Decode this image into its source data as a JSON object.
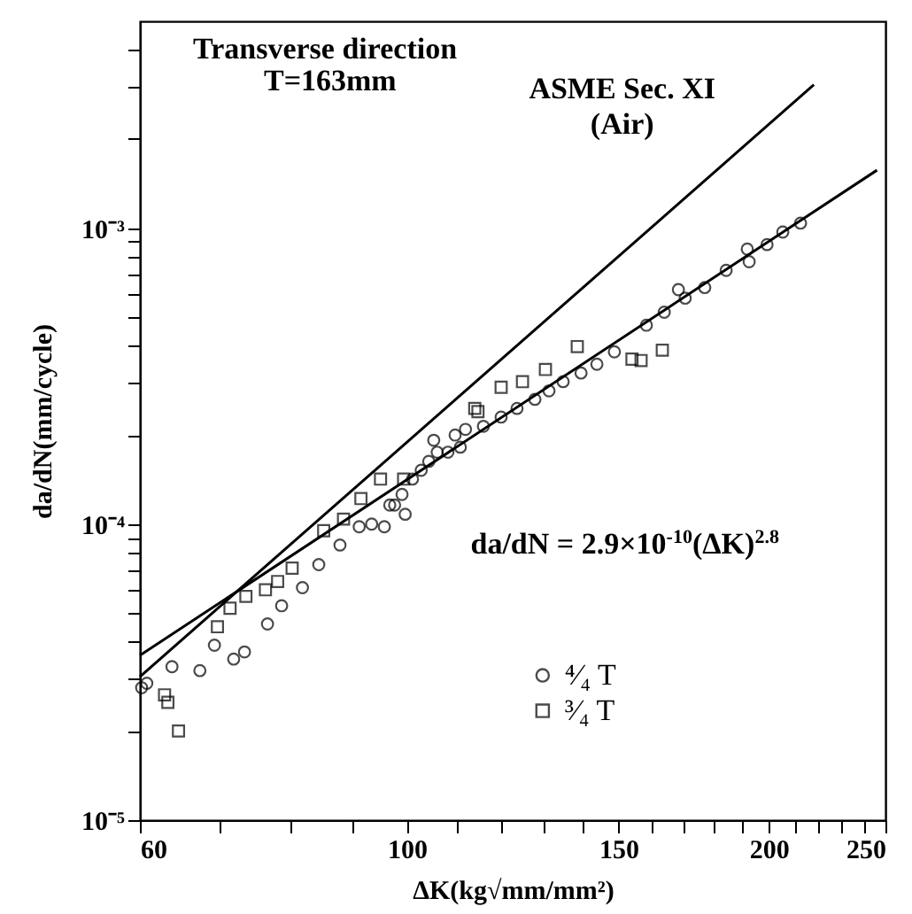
{
  "chart_data": {
    "type": "scatter",
    "xlabel": "ΔK(kg√mm/mm²)",
    "ylabel": "da/dN(mm/cycle)",
    "annotations": [
      "Transverse direction",
      "T=163mm",
      {
        "text": "ASME Sec. XI\n(Air)",
        "x": 182,
        "y": 0.00169
      },
      {
        "text": "da/dN = 2.9×10$^{-10}$(ΔK)$^{2.8}$",
        "x": 107.4,
        "y": 0.00017
      }
    ],
    "log": "xy",
    "grid": false,
    "legend": "bottom right",
    "xlim": [
      60,
      250
    ],
    "ylim": [
      1e-05,
      0.005
    ],
    "xticks": [
      60,
      {
        "value": 70,
        "label": null
      },
      {
        "value": 80,
        "label": null
      },
      {
        "value": 90,
        "label": null
      },
      100,
      {
        "value": 110,
        "label": null
      },
      {
        "value": 120,
        "label": null
      },
      {
        "value": 130,
        "label": null
      },
      {
        "value": 140,
        "label": null
      },
      150,
      {
        "value": 160,
        "label": null
      },
      {
        "value": 170,
        "label": null
      },
      {
        "value": 180,
        "label": null
      },
      {
        "value": 190,
        "label": null
      },
      200,
      {
        "value": 210,
        "label": null
      },
      {
        "value": 220,
        "label": null
      },
      {
        "value": 230,
        "label": null
      },
      {
        "value": 240,
        "label": null
      },
      250
    ],
    "yticks": [
      {
        "value": 1e-05,
        "label": "10⁻⁵"
      },
      {
        "value": 2e-05,
        "label": null
      },
      {
        "value": 3e-05,
        "label": null
      },
      {
        "value": 4e-05,
        "label": null
      },
      {
        "value": 5e-05,
        "label": null
      },
      {
        "value": 6e-05,
        "label": null
      },
      {
        "value": 7e-05,
        "label": null
      },
      {
        "value": 8e-05,
        "label": null
      },
      {
        "value": 9e-05,
        "label": null
      },
      {
        "value": 0.0001,
        "label": "10⁻⁴"
      },
      {
        "value": 0.0002,
        "label": null
      },
      {
        "value": 0.0003,
        "label": null
      },
      {
        "value": 0.0004,
        "label": null
      },
      {
        "value": 0.0005,
        "label": null
      },
      {
        "value": 0.0006,
        "label": null
      },
      {
        "value": 0.0007,
        "label": null
      },
      {
        "value": 0.0008,
        "label": null
      },
      {
        "value": 0.0009,
        "label": null
      },
      {
        "value": 0.001,
        "label": "10⁻³"
      },
      {
        "value": 0.002,
        "label": null
      },
      {
        "value": 0.003,
        "label": null
      },
      {
        "value": 0.004,
        "label": null
      }
    ],
    "series": [
      {
        "name": "⁴⁄₄ T",
        "marker": "circle",
        "color": "#000000",
        "x": [
          60.2,
          60.8,
          63.8,
          67.3,
          69.2,
          71.8,
          73.3,
          76.6,
          78.7,
          81.9,
          84.5,
          88.0,
          91.3,
          93.5,
          95.8,
          96.8,
          97.7,
          99.7,
          99.1,
          101.1,
          102.8,
          104.3,
          106.0,
          108.2,
          110.8,
          105.3,
          109.7,
          111.9,
          115.8,
          119.8,
          123.5,
          127.8,
          131.3,
          134.9,
          139.6,
          143.9,
          148.8,
          158.2,
          163.7,
          168.2,
          170.4,
          176.9,
          184.3,
          191.9,
          192.6,
          199.3,
          205.4,
          212.5
        ],
        "values": [
          2.8e-05,
          2.9e-05,
          3.3e-05,
          3.2e-05,
          3.9e-05,
          3.5e-05,
          3.7e-05,
          4.6e-05,
          5.3e-05,
          6.1e-05,
          7.3e-05,
          8.5e-05,
          9.8e-05,
          0.0001,
          9.8e-05,
          0.000116,
          0.000116,
          0.000108,
          0.000126,
          0.000142,
          0.000152,
          0.000163,
          0.000175,
          0.000175,
          0.000182,
          0.000192,
          0.0002,
          0.000209,
          0.000214,
          0.00023,
          0.000246,
          0.000264,
          0.000282,
          0.000303,
          0.000324,
          0.000347,
          0.000382,
          0.00047,
          0.00052,
          0.00062,
          0.00058,
          0.00063,
          0.00072,
          0.00085,
          0.00077,
          0.00088,
          0.00097,
          0.00104
        ]
      },
      {
        "name": "³⁄₄ T",
        "marker": "square",
        "color": "#000000",
        "x": [
          62.9,
          63.3,
          64.6,
          69.6,
          71.3,
          73.5,
          76.3,
          78.1,
          80.3,
          85.3,
          88.6,
          91.6,
          95.1,
          99.4,
          113.9,
          114.6,
          119.8,
          124.8,
          130.4,
          138.6,
          153.9,
          156.6,
          163.1
        ],
        "values": [
          2.65e-05,
          2.5e-05,
          2e-05,
          4.5e-05,
          5.2e-05,
          5.7e-05,
          6e-05,
          6.4e-05,
          7.1e-05,
          9.5e-05,
          0.000104,
          0.000122,
          0.000142,
          0.000142,
          0.000246,
          0.00024,
          0.00029,
          0.000303,
          0.000333,
          0.000398,
          0.000361,
          0.000357,
          0.000387
        ]
      },
      {
        "type": "line",
        "color": "#000000",
        "x": [
          60,
          218
        ],
        "values": [
          3.05e-05,
          0.00305
        ]
      },
      {
        "type": "line",
        "color": "#000000",
        "x": [
          60,
          246
        ],
        "values": [
          3.6e-05,
          0.00157
        ]
      }
    ]
  }
}
